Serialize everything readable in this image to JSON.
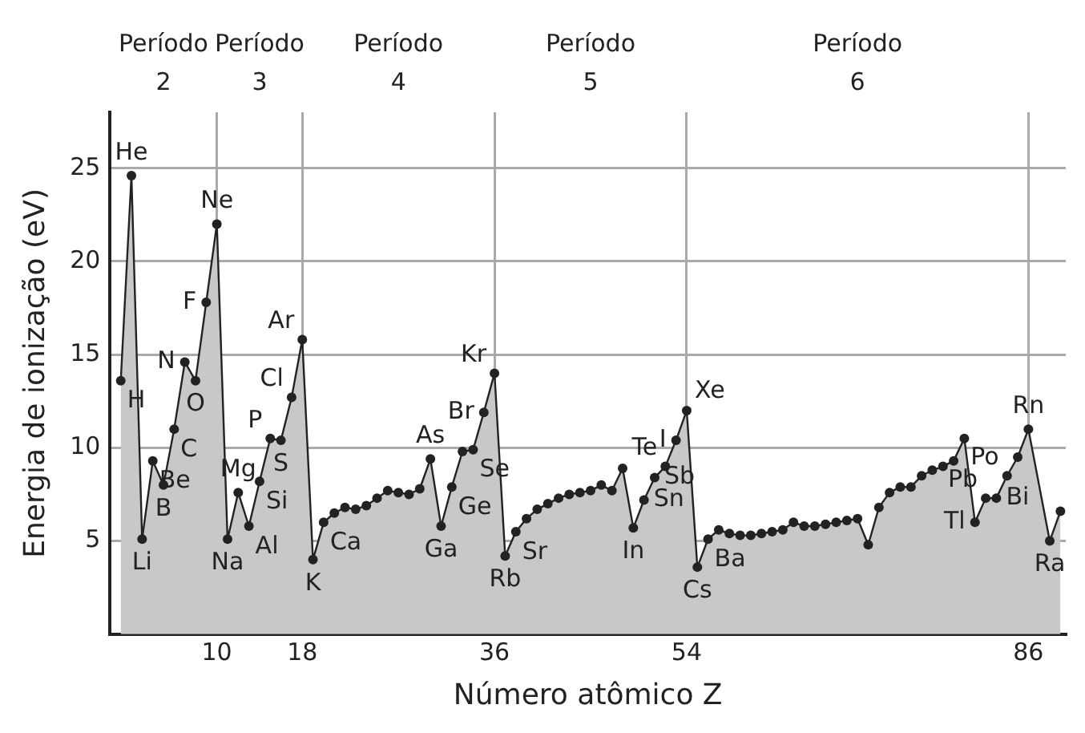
{
  "chart_data": {
    "type": "area",
    "xlabel": "Número atômico Z",
    "ylabel": "Energia de ionização (eV)",
    "xlim": [
      0,
      89.5
    ],
    "ylim": [
      0,
      28
    ],
    "xticks": [
      10,
      18,
      36,
      54,
      86
    ],
    "yticks": [
      5,
      10,
      15,
      20,
      25
    ],
    "grid": true,
    "legend": false,
    "marker": "circle",
    "series": [
      {
        "color": "#222222",
        "x": [
          1,
          2,
          3,
          4,
          5,
          6,
          7,
          8,
          9,
          10,
          11,
          12,
          13,
          14,
          15,
          16,
          17,
          18,
          19,
          20,
          21,
          22,
          23,
          24,
          25,
          26,
          27,
          28,
          29,
          30,
          31,
          32,
          33,
          34,
          35,
          36,
          37,
          38,
          39,
          40,
          41,
          42,
          43,
          44,
          45,
          46,
          47,
          48,
          49,
          50,
          51,
          52,
          53,
          54,
          55,
          56,
          57,
          58,
          59,
          60,
          61,
          62,
          63,
          64,
          65,
          66,
          67,
          68,
          69,
          70,
          71,
          72,
          73,
          74,
          75,
          76,
          77,
          78,
          79,
          80,
          81,
          82,
          83,
          84,
          85,
          86,
          88,
          89
        ],
        "values": [
          13.6,
          24.6,
          5.1,
          9.3,
          8.0,
          11.0,
          14.6,
          13.6,
          17.8,
          22.0,
          5.1,
          7.6,
          5.8,
          8.2,
          10.5,
          10.4,
          12.7,
          15.8,
          4.0,
          6.0,
          6.5,
          6.8,
          6.7,
          6.9,
          7.3,
          7.7,
          7.6,
          7.5,
          7.8,
          9.4,
          5.8,
          7.9,
          9.8,
          9.9,
          11.9,
          14.0,
          4.2,
          5.5,
          6.2,
          6.7,
          7.0,
          7.3,
          7.5,
          7.6,
          7.7,
          8.0,
          7.7,
          8.9,
          5.7,
          7.2,
          8.4,
          9.0,
          10.4,
          12.0,
          3.6,
          5.1,
          5.6,
          5.4,
          5.3,
          5.3,
          5.4,
          5.5,
          5.6,
          6.0,
          5.8,
          5.8,
          5.9,
          6.0,
          6.1,
          6.2,
          4.8,
          6.8,
          7.6,
          7.9,
          7.9,
          8.5,
          8.8,
          9.0,
          9.3,
          10.5,
          6.0,
          7.3,
          7.3,
          8.5,
          9.5,
          11.0,
          5.0,
          6.6
        ]
      }
    ],
    "annotations": [
      "Período\n2",
      "Período\n3",
      "Período\n4",
      "Período\n5",
      "Período\n6",
      {
        "text": "H",
        "x": 1,
        "y": 13.6
      },
      {
        "text": "He",
        "x": 2,
        "y": 24.6
      },
      {
        "text": "Li",
        "x": 3,
        "y": 5.1
      },
      {
        "text": "Be",
        "x": 4,
        "y": 9.3
      },
      {
        "text": "B",
        "x": 5,
        "y": 8.0
      },
      {
        "text": "C",
        "x": 6,
        "y": 11.0
      },
      {
        "text": "N",
        "x": 7,
        "y": 14.6
      },
      {
        "text": "O",
        "x": 8,
        "y": 13.6
      },
      {
        "text": "F",
        "x": 9,
        "y": 17.8
      },
      {
        "text": "Ne",
        "x": 10,
        "y": 22.0
      },
      {
        "text": "Na",
        "x": 11,
        "y": 5.1
      },
      {
        "text": "Mg",
        "x": 12,
        "y": 7.6
      },
      {
        "text": "Al",
        "x": 13,
        "y": 5.8
      },
      {
        "text": "Si",
        "x": 14,
        "y": 8.2
      },
      {
        "text": "P",
        "x": 15,
        "y": 10.5
      },
      {
        "text": "S",
        "x": 16,
        "y": 10.4
      },
      {
        "text": "Cl",
        "x": 17,
        "y": 12.7
      },
      {
        "text": "Ar",
        "x": 18,
        "y": 15.8
      },
      {
        "text": "K",
        "x": 19,
        "y": 4.0
      },
      {
        "text": "Ca",
        "x": 20,
        "y": 6.0
      },
      {
        "text": "As",
        "x": 30,
        "y": 9.4
      },
      {
        "text": "Ga",
        "x": 31,
        "y": 5.8
      },
      {
        "text": "Ge",
        "x": 32,
        "y": 7.9
      },
      {
        "text": "Se",
        "x": 34,
        "y": 9.9
      },
      {
        "text": "Br",
        "x": 35,
        "y": 11.9
      },
      {
        "text": "Kr",
        "x": 36,
        "y": 14.0
      },
      {
        "text": "Rb",
        "x": 37,
        "y": 4.2
      },
      {
        "text": "Sr",
        "x": 38,
        "y": 5.5
      },
      {
        "text": "In",
        "x": 49,
        "y": 5.7
      },
      {
        "text": "Sn",
        "x": 50,
        "y": 7.2
      },
      {
        "text": "Sb",
        "x": 51,
        "y": 8.4
      },
      {
        "text": "Te",
        "x": 52,
        "y": 9.0
      },
      {
        "text": "I",
        "x": 53,
        "y": 10.4
      },
      {
        "text": "Xe",
        "x": 54,
        "y": 12.0
      },
      {
        "text": "Cs",
        "x": 55,
        "y": 3.6
      },
      {
        "text": "Ba",
        "x": 56,
        "y": 5.1
      },
      {
        "text": "Tl",
        "x": 81,
        "y": 6.0
      },
      {
        "text": "Pb",
        "x": 82,
        "y": 7.3
      },
      {
        "text": "Bi",
        "x": 83,
        "y": 7.3
      },
      {
        "text": "Po",
        "x": 84,
        "y": 8.5
      },
      {
        "text": "Rn",
        "x": 86,
        "y": 11.0
      },
      {
        "text": "Ra",
        "x": 88,
        "y": 5.0
      }
    ]
  }
}
